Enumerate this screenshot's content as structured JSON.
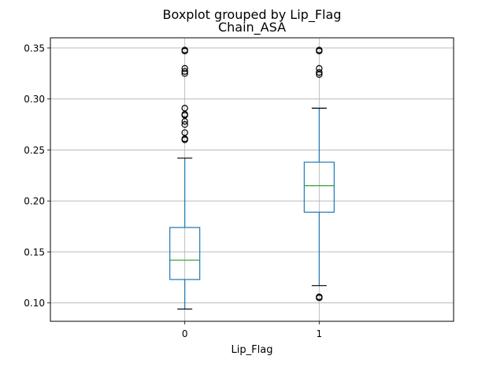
{
  "chart_data": {
    "type": "boxplot",
    "suptitle": "Boxplot grouped by Lip_Flag",
    "title": "Chain_ASA",
    "xlabel": "Lip_Flag",
    "ylabel": "",
    "categories": [
      "0",
      "1"
    ],
    "ylim": [
      0.082,
      0.36
    ],
    "yticks": [
      0.1,
      0.15,
      0.2,
      0.25,
      0.3,
      0.35
    ],
    "ytick_labels": [
      "0.10",
      "0.15",
      "0.20",
      "0.25",
      "0.30",
      "0.35"
    ],
    "grid": true,
    "colors": {
      "box": "#1f77b4",
      "median": "#2ca02c",
      "cap": "#000000",
      "grid": "#b0b0b0",
      "flier": "#000000"
    },
    "boxes": [
      {
        "category": "0",
        "whisker_low": 0.094,
        "q1": 0.123,
        "median": 0.142,
        "q3": 0.174,
        "whisker_high": 0.242,
        "fliers": [
          0.26,
          0.261,
          0.267,
          0.275,
          0.278,
          0.284,
          0.285,
          0.291,
          0.325,
          0.327,
          0.33,
          0.347,
          0.348
        ]
      },
      {
        "category": "1",
        "whisker_low": 0.117,
        "q1": 0.189,
        "median": 0.215,
        "q3": 0.238,
        "whisker_high": 0.291,
        "fliers": [
          0.105,
          0.106,
          0.324,
          0.326,
          0.33,
          0.347,
          0.348
        ]
      }
    ]
  }
}
